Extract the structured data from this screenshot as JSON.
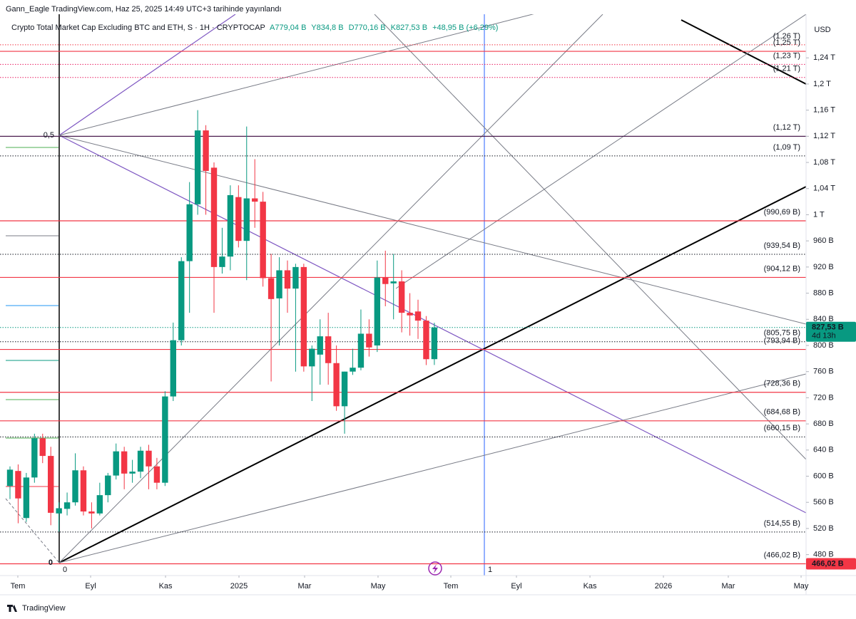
{
  "header": "Gann_Eagle TradingView.com, Haz 25, 2025 14:49 UTC+3 tarihinde yayınlandı",
  "legend": {
    "symbol": "Crypto Total Market Cap Excluding BTC and ETH, S · 1H · CRYPTOCAP",
    "open": "A779,04 B",
    "high": "Y834,8 B",
    "low": "D770,16 B",
    "close": "K827,53 B",
    "change": "+48,95 B (+6,29%)"
  },
  "currency": "USD",
  "footer": "TradingView",
  "chart_data": {
    "type": "candlestick",
    "categories": [
      null,
      null,
      null,
      null,
      null,
      null,
      null,
      null,
      null,
      null,
      null,
      null,
      null,
      null,
      null,
      null,
      null,
      null,
      null,
      null,
      null,
      null,
      null,
      null,
      null,
      null,
      null,
      null,
      null,
      null,
      null,
      null,
      null,
      null,
      null,
      null,
      null,
      null,
      null,
      null,
      null,
      null,
      null,
      null,
      null,
      null,
      null,
      null,
      null,
      null,
      null,
      null,
      null
    ],
    "open": [
      585,
      608,
      536,
      598,
      658,
      631,
      543,
      550,
      560,
      609,
      546,
      543,
      571,
      601,
      638,
      604,
      607,
      639,
      615,
      590,
      722,
      808,
      929,
      1016,
      1129,
      1072,
      920,
      936,
      1027,
      960,
      1025,
      1020,
      903,
      872,
      915,
      887,
      920,
      768,
      786,
      814,
      773,
      707,
      760,
      766,
      818,
      800,
      904,
      895,
      898,
      850,
      852,
      838,
      779.04
    ],
    "high": [
      615,
      618,
      605,
      665,
      665,
      645,
      560,
      575,
      635,
      615,
      560,
      590,
      605,
      650,
      645,
      625,
      645,
      648,
      628,
      730,
      835,
      935,
      1050,
      1160,
      1137,
      1080,
      980,
      1045,
      1045,
      1135,
      1085,
      1035,
      940,
      935,
      930,
      925,
      925,
      800,
      840,
      850,
      800,
      760,
      795,
      855,
      840,
      930,
      945,
      940,
      915,
      880,
      870,
      845,
      834.8
    ],
    "low": [
      565,
      528,
      530,
      590,
      620,
      525,
      515,
      540,
      555,
      540,
      520,
      540,
      560,
      595,
      580,
      590,
      597,
      580,
      580,
      585,
      715,
      800,
      850,
      1000,
      1000,
      850,
      910,
      915,
      950,
      900,
      980,
      890,
      745,
      800,
      850,
      760,
      760,
      715,
      740,
      740,
      700,
      665,
      755,
      762,
      783,
      790,
      860,
      840,
      820,
      815,
      810,
      770,
      770.16
    ],
    "close": [
      610,
      566,
      598,
      658,
      631,
      544,
      551,
      560,
      609,
      546,
      543,
      571,
      601,
      638,
      604,
      607,
      639,
      615,
      590,
      722,
      808,
      929,
      1016,
      1129,
      1067,
      920,
      936,
      1030,
      960,
      1025,
      1020,
      903,
      871,
      915,
      887,
      920,
      768,
      795,
      814,
      773,
      707,
      760,
      766,
      818,
      797,
      904,
      894,
      898,
      850,
      846,
      838,
      779,
      827.53
    ],
    "up_color": "#089981",
    "down_color": "#f23645",
    "ylim": [
      448,
      1298
    ],
    "yticks": [
      {
        "value": 480,
        "label": "480 B"
      },
      {
        "value": 520,
        "label": "520 B"
      },
      {
        "value": 560,
        "label": "560 B"
      },
      {
        "value": 600,
        "label": "600 B"
      },
      {
        "value": 640,
        "label": "640 B"
      },
      {
        "value": 680,
        "label": "680 B"
      },
      {
        "value": 720,
        "label": "720 B"
      },
      {
        "value": 760,
        "label": "760 B"
      },
      {
        "value": 800,
        "label": "800 B"
      },
      {
        "value": 840,
        "label": "840 B"
      },
      {
        "value": 880,
        "label": "880 B"
      },
      {
        "value": 920,
        "label": "920 B"
      },
      {
        "value": 960,
        "label": "960 B"
      },
      {
        "value": 1000,
        "label": "1 T"
      },
      {
        "value": 1040,
        "label": "1,04 T"
      },
      {
        "value": 1080,
        "label": "1,08 T"
      },
      {
        "value": 1120,
        "label": "1,12 T"
      },
      {
        "value": 1160,
        "label": "1,16 T"
      },
      {
        "value": 1200,
        "label": "1,2 T"
      },
      {
        "value": 1240,
        "label": "1,24 T"
      }
    ],
    "xlim": [
      -1.224,
      97.55
    ],
    "xticks": [
      {
        "value": 0.96,
        "label": "Tem"
      },
      {
        "value": 9.88,
        "label": "Eyl"
      },
      {
        "value": 19.06,
        "label": "Kas"
      },
      {
        "value": 28.06,
        "label": "2025"
      },
      {
        "value": 36.1,
        "label": "Mar"
      },
      {
        "value": 45.1,
        "label": "May"
      },
      {
        "value": 54.02,
        "label": "Tem"
      },
      {
        "value": 62.06,
        "label": "Eyl"
      },
      {
        "value": 71.07,
        "label": "Kas"
      },
      {
        "value": 80.07,
        "label": "2026"
      },
      {
        "value": 88.02,
        "label": "Mar"
      },
      {
        "value": 96.94,
        "label": "May"
      }
    ],
    "levels": [
      {
        "value": 1260,
        "label": "(1,26 T)",
        "color": "#f23645",
        "dashed": true
      },
      {
        "value": 1250,
        "label": "(1,25 T)",
        "color": "#f23645",
        "dashed": false
      },
      {
        "value": 1230,
        "label": "(1,23 T)",
        "color": "#e91e63",
        "dashed": true
      },
      {
        "value": 1210,
        "label": "(1,21 T)",
        "color": "#e91e63",
        "dashed": true
      },
      {
        "value": 1120,
        "label": "(1,12 T)",
        "color": "#f23645",
        "dashed": false,
        "line_color": "#4a1d4f"
      },
      {
        "value": 1090,
        "label": "(1,09 T)",
        "color": "#131722",
        "dashed": true
      },
      {
        "value": 990.69,
        "label": "(990,69 B)",
        "color": "#f23645",
        "dashed": false
      },
      {
        "value": 939.54,
        "label": "(939,54 B)",
        "color": "#131722",
        "dashed": true
      },
      {
        "value": 904.12,
        "label": "(904,12 B)",
        "color": "#f23645",
        "dashed": false
      },
      {
        "value": 805.75,
        "label": "(805,75 B)",
        "color": "#131722",
        "dashed": true
      },
      {
        "value": 793.94,
        "label": "(793,94 B)",
        "color": "#f23645",
        "dashed": false
      },
      {
        "value": 728.36,
        "label": "(728,36 B)",
        "color": "#f23645",
        "dashed": false
      },
      {
        "value": 684.68,
        "label": "(684,68 B)",
        "color": "#f23645",
        "dashed": false
      },
      {
        "value": 660.15,
        "label": "(660,15 B)",
        "color": "#131722",
        "dashed": true
      },
      {
        "value": 514.55,
        "label": "(514,55 B)",
        "color": "#131722",
        "dashed": true
      },
      {
        "value": 466.02,
        "label": "(466,02 B)",
        "color": "#f23645",
        "dashed": false
      }
    ],
    "price_badge": {
      "value": 827.53,
      "label": "827,53 B",
      "countdown": "4d 13h",
      "color": "#089981"
    },
    "low_badge": {
      "value": 466.02,
      "label": "466,02 B",
      "color": "#f23645"
    },
    "annotations": [
      "0,5",
      "0",
      "0",
      "1"
    ]
  }
}
